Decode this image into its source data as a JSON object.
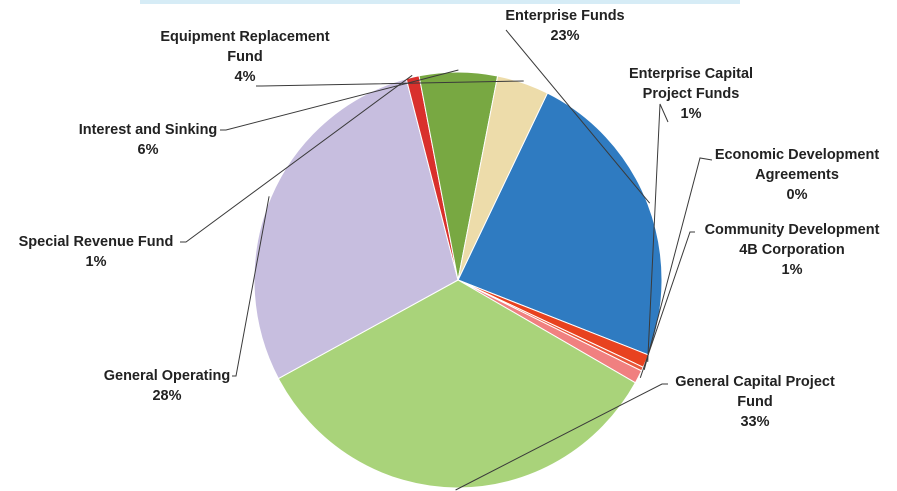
{
  "chart_data": {
    "type": "pie",
    "title": "",
    "slices": [
      {
        "label": "Enterprise Funds",
        "value": 23,
        "display": "23%",
        "color": "#2f7bc1"
      },
      {
        "label": "Enterprise Capital Project Funds",
        "value": 1,
        "display": "1%",
        "color": "#e8421f"
      },
      {
        "label": "Economic Development Agreements",
        "value": 0.3,
        "display": "0%",
        "color": "#e9573b"
      },
      {
        "label": "Community Development 4B Corporation",
        "value": 1,
        "display": "1%",
        "color": "#f08080"
      },
      {
        "label": "General Capital Project Fund",
        "value": 33,
        "display": "33%",
        "color": "#a9d37a"
      },
      {
        "label": "General Operating",
        "value": 28,
        "display": "28%",
        "color": "#c7bedf"
      },
      {
        "label": "Special Revenue Fund",
        "value": 1,
        "display": "1%",
        "color": "#d9302c"
      },
      {
        "label": "Interest and Sinking",
        "value": 6,
        "display": "6%",
        "color": "#78a842"
      },
      {
        "label": "Equipment Replacement Fund",
        "value": 4,
        "display": "4%",
        "color": "#eddcaa"
      }
    ],
    "label_lines": {
      "enterprise": [
        "Enterprise Funds"
      ],
      "enterprise_capital": [
        "Enterprise Capital",
        "Project Funds"
      ],
      "economic_dev": [
        "Economic Development",
        "Agreements"
      ],
      "community_dev": [
        "Community Development",
        "4B Corporation"
      ],
      "general_capital": [
        "General Capital Project",
        "Fund"
      ],
      "general_operating": [
        "General Operating"
      ],
      "special_revenue": [
        "Special Revenue Fund"
      ],
      "interest_sinking": [
        "Interest and Sinking"
      ],
      "equipment": [
        "Equipment Replacement",
        "Fund"
      ]
    },
    "legend": "none"
  }
}
